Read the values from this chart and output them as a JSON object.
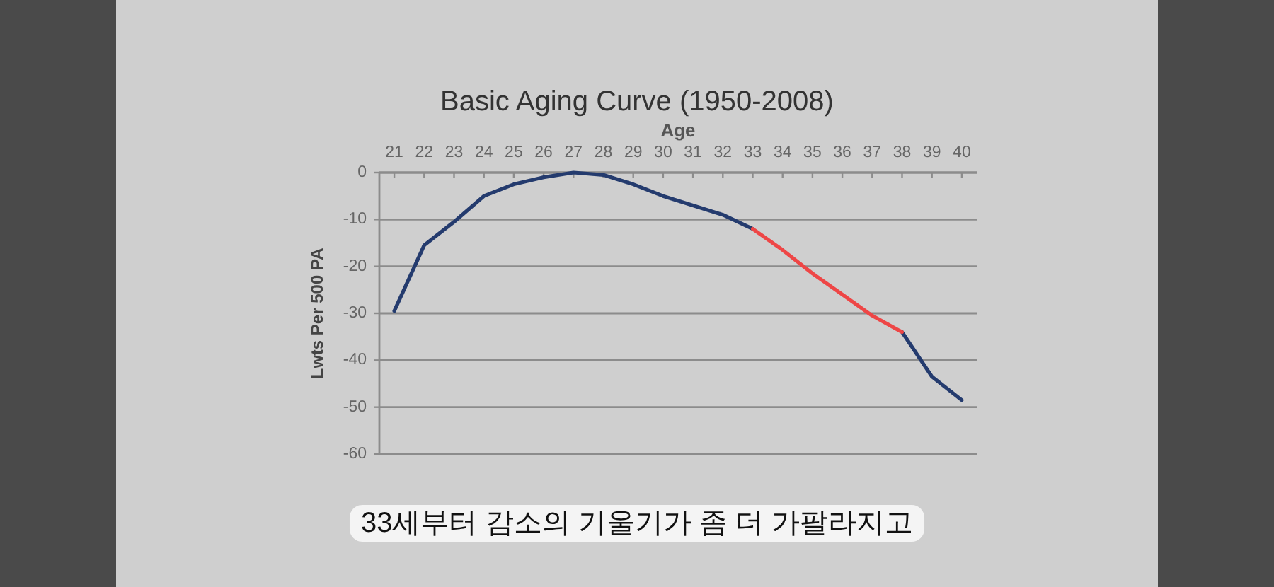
{
  "chart_data": {
    "type": "line",
    "title": "Basic Aging Curve (1950-2008)",
    "xlabel": "Age",
    "ylabel": "Lwts Per 500 PA",
    "categories": [
      "21",
      "22",
      "23",
      "24",
      "25",
      "26",
      "27",
      "28",
      "29",
      "30",
      "31",
      "32",
      "33",
      "34",
      "35",
      "36",
      "37",
      "38",
      "39",
      "40"
    ],
    "series": [
      {
        "color": "#243b6e",
        "values": [
          -29.5,
          -15.5,
          -10.5,
          -5,
          -2.5,
          -1,
          0,
          -0.5,
          -2.5,
          -5,
          -7,
          -9,
          -12,
          null,
          null,
          null,
          null,
          -34,
          -43.5,
          -48.5
        ]
      },
      {
        "color": "#ee4646",
        "values": [
          null,
          null,
          null,
          null,
          null,
          null,
          null,
          null,
          null,
          null,
          null,
          null,
          -12,
          -16.5,
          -21.5,
          -26,
          -30.5,
          -34,
          null,
          null
        ]
      }
    ],
    "ylim": [
      -60,
      0
    ],
    "yticks": [
      0,
      -10,
      -20,
      -30,
      -40,
      -50,
      -60
    ],
    "grid": "y",
    "annotations": [
      "33세부터 감소의 기울기가 좀 더 가팔라지고"
    ]
  }
}
